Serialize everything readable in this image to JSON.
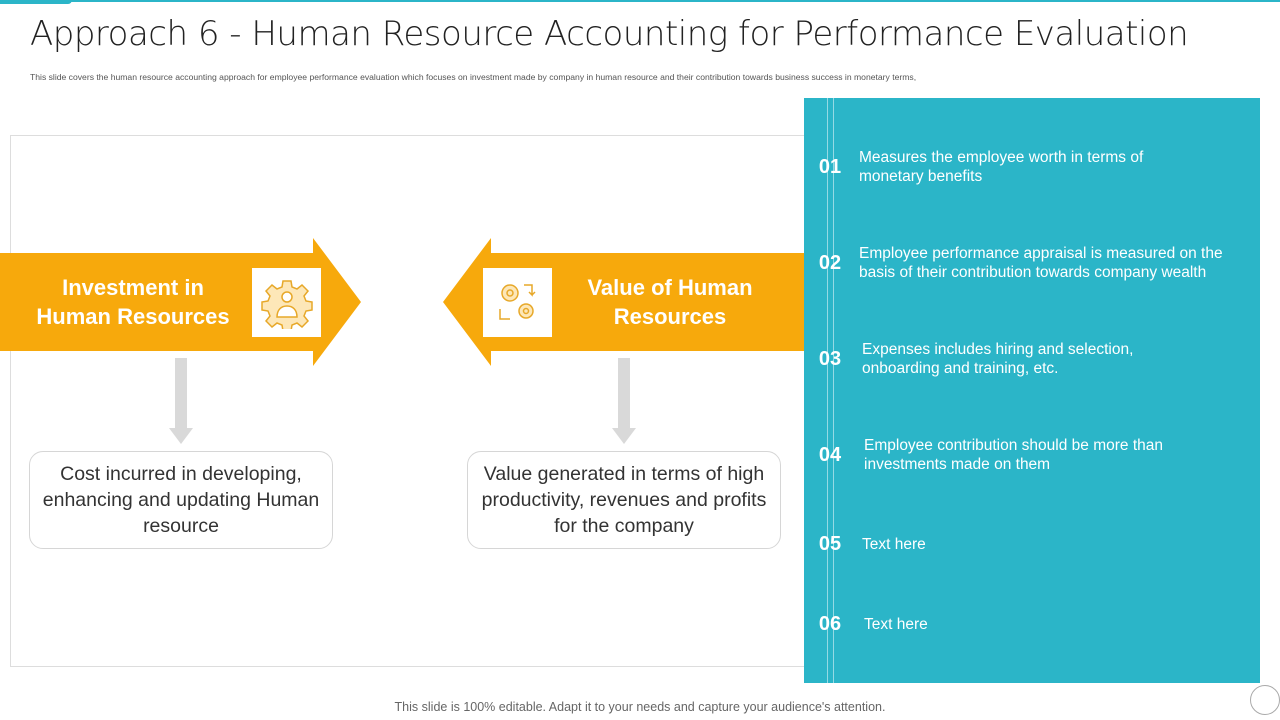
{
  "header": {
    "title": "Approach 6 - Human Resource Accounting for Performance Evaluation",
    "subtitle": "This slide covers the human resource accounting approach for employee performance evaluation which focuses on investment made by company in human resource and their contribution towards business success in monetary terms,"
  },
  "left": {
    "arrow_label": "Investment in Human Resources",
    "icon": "gear-person-icon",
    "box_text": "Cost incurred in developing, enhancing and updating Human  resource"
  },
  "right": {
    "arrow_label": "Value of Human Resources",
    "icon": "gears-cycle-icon",
    "box_text": "Value generated in terms of high productivity, revenues and profits for the company"
  },
  "panel": {
    "items": [
      {
        "num": "01",
        "text": "Measures the employee worth in terms of monetary benefits"
      },
      {
        "num": "02",
        "text": "Employee performance appraisal is measured on the basis of their contribution towards company wealth"
      },
      {
        "num": "03",
        "text": "Expenses includes hiring and selection, onboarding and training, etc."
      },
      {
        "num": "04",
        "text": "Employee contribution should be more than investments  made on them"
      },
      {
        "num": "05",
        "text": "Text here"
      },
      {
        "num": "06",
        "text": "Text here"
      }
    ]
  },
  "footer": "This slide is 100% editable. Adapt it to your needs and capture your audience's attention.",
  "colors": {
    "accent_teal": "#2bb5c8",
    "accent_orange": "#f7a90c"
  }
}
